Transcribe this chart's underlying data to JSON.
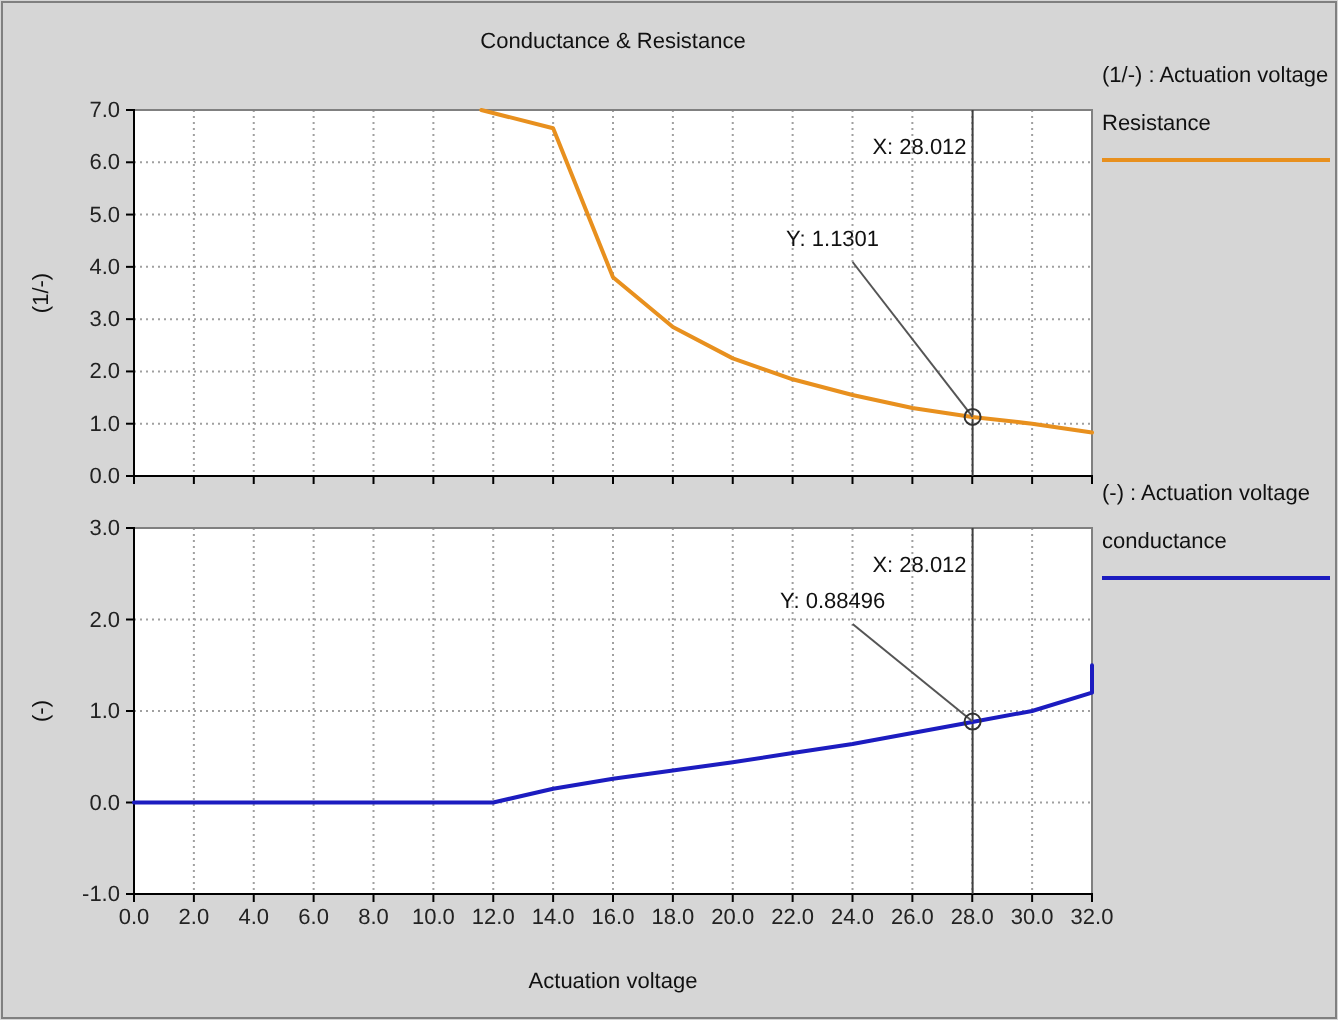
{
  "chart_data": [
    {
      "type": "line",
      "title": "Conductance & Resistance",
      "ylabel": "(1/-)",
      "legend_title": "(1/-) : Actuation voltage",
      "legend": "right",
      "grid": true,
      "tick_labels": "y",
      "xlim": [
        0,
        32
      ],
      "ylim": [
        0,
        7
      ],
      "xticks": [
        0,
        2,
        4,
        6,
        8,
        10,
        12,
        14,
        16,
        18,
        20,
        22,
        24,
        26,
        28,
        30,
        32
      ],
      "yticks": [
        {
          "value": 0,
          "label": "0.0"
        },
        {
          "value": 1,
          "label": "1.0"
        },
        {
          "value": 2,
          "label": "2.0"
        },
        {
          "value": 3,
          "label": "3.0"
        },
        {
          "value": 4,
          "label": "4.0"
        },
        {
          "value": 5,
          "label": "5.0"
        },
        {
          "value": 6,
          "label": "6.0"
        },
        {
          "value": 7,
          "label": "7.0"
        }
      ],
      "series": [
        {
          "name": "Resistance",
          "color": "#e8901e",
          "x": [
            11.6,
            14,
            16,
            18,
            20,
            22,
            24,
            26,
            28,
            30,
            32
          ],
          "values": [
            7.0,
            6.65,
            3.8,
            2.85,
            2.25,
            1.85,
            1.55,
            1.3,
            1.13,
            1.0,
            0.83
          ]
        }
      ],
      "ref_lines": [
        {
          "axis": "x",
          "value": 28.012,
          "label": "X: 28.012",
          "color": "#404040"
        }
      ],
      "annotations": [
        {
          "text": "Y: 1.1301",
          "x": 28.012,
          "y": 1.1301
        }
      ]
    },
    {
      "type": "line",
      "xlabel": "Actuation voltage",
      "ylabel": "(-)",
      "legend_title": "(-) : Actuation voltage",
      "legend": "right",
      "grid": true,
      "xlim": [
        0,
        32
      ],
      "ylim": [
        -1,
        3
      ],
      "xticks": [
        {
          "value": 0,
          "label": "0.0"
        },
        {
          "value": 2,
          "label": "2.0"
        },
        {
          "value": 4,
          "label": "4.0"
        },
        {
          "value": 6,
          "label": "6.0"
        },
        {
          "value": 8,
          "label": "8.0"
        },
        {
          "value": 10,
          "label": "10.0"
        },
        {
          "value": 12,
          "label": "12.0"
        },
        {
          "value": 14,
          "label": "14.0"
        },
        {
          "value": 16,
          "label": "16.0"
        },
        {
          "value": 18,
          "label": "18.0"
        },
        {
          "value": 20,
          "label": "20.0"
        },
        {
          "value": 22,
          "label": "22.0"
        },
        {
          "value": 24,
          "label": "24.0"
        },
        {
          "value": 26,
          "label": "26.0"
        },
        {
          "value": 28,
          "label": "28.0"
        },
        {
          "value": 30,
          "label": "30.0"
        },
        {
          "value": 32,
          "label": "32.0"
        }
      ],
      "yticks": [
        {
          "value": -1,
          "label": "-1.0"
        },
        {
          "value": 0,
          "label": "0.0"
        },
        {
          "value": 1,
          "label": "1.0"
        },
        {
          "value": 2,
          "label": "2.0"
        },
        {
          "value": 3,
          "label": "3.0"
        }
      ],
      "series": [
        {
          "name": "conductance",
          "color": "#1c1cc0",
          "x": [
            0,
            12,
            14,
            16,
            18,
            20,
            22,
            24,
            26,
            28,
            30,
            32,
            32
          ],
          "values": [
            0,
            0,
            0.15,
            0.26,
            0.35,
            0.44,
            0.54,
            0.64,
            0.76,
            0.88,
            1.0,
            1.2,
            1.5
          ]
        }
      ],
      "ref_lines": [
        {
          "axis": "x",
          "value": 28.012,
          "label": "X: 28.012",
          "color": "#404040"
        }
      ],
      "annotations": [
        {
          "text": "Y: 0.88496",
          "x": 28.012,
          "y": 0.88496
        }
      ]
    }
  ]
}
